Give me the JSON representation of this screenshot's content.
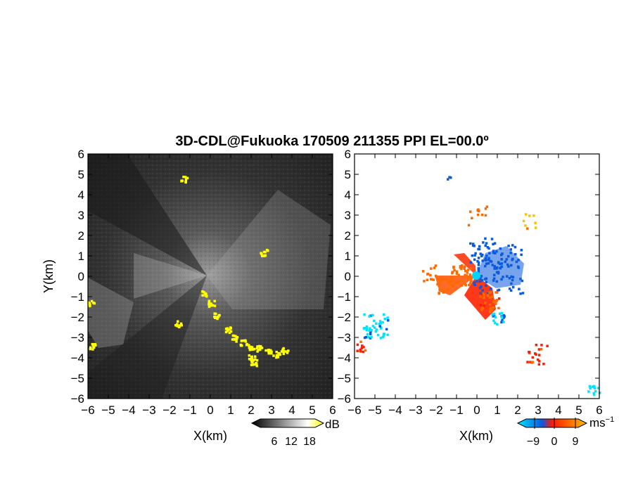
{
  "title": "3D-CDL@Fukuoka 170509 211355 PPI EL=00.0º",
  "chart_data": [
    {
      "type": "heatmap",
      "name": "",
      "xlabel": "X(km)",
      "ylabel": "Y(km)",
      "xlim": [
        -6,
        6
      ],
      "ylim": [
        -6,
        6
      ],
      "xticks": [
        "−6",
        "−5",
        "−4",
        "−3",
        "−2",
        "−1",
        "0",
        "1",
        "2",
        "3",
        "4",
        "5",
        "6"
      ],
      "yticks": [
        "6",
        "5",
        "4",
        "3",
        "2",
        "1",
        "0",
        "−1",
        "−2",
        "−3",
        "−4",
        "−5",
        "−6"
      ],
      "colorbar": {
        "unit": "dB",
        "ticks": [
          "6",
          "12",
          "18"
        ],
        "range": [
          0,
          24
        ],
        "colors": [
          "#000000",
          "#ffffff",
          "#ffff00"
        ]
      },
      "highlight_color": "#ffff00",
      "yellow_features": [
        {
          "x": -0.3,
          "y": -0.8
        },
        {
          "x": 0.0,
          "y": -1.3
        },
        {
          "x": 0.3,
          "y": -1.9
        },
        {
          "x": 0.8,
          "y": -2.6
        },
        {
          "x": 1.2,
          "y": -3.0
        },
        {
          "x": 1.6,
          "y": -3.2
        },
        {
          "x": 2.0,
          "y": -3.4
        },
        {
          "x": 2.4,
          "y": -3.5
        },
        {
          "x": 2.8,
          "y": -3.7
        },
        {
          "x": 3.2,
          "y": -3.8
        },
        {
          "x": 3.6,
          "y": -3.6
        },
        {
          "x": 2.0,
          "y": -3.9
        },
        {
          "x": 2.1,
          "y": -4.2
        },
        {
          "x": -5.9,
          "y": -1.3
        },
        {
          "x": -5.8,
          "y": -3.4
        },
        {
          "x": -1.6,
          "y": -2.3
        },
        {
          "x": 2.6,
          "y": 1.2
        },
        {
          "x": -1.3,
          "y": 4.8
        }
      ]
    },
    {
      "type": "heatmap",
      "name": "",
      "xlabel": "X(km)",
      "ylabel": "",
      "xlim": [
        -6,
        6
      ],
      "ylim": [
        -6,
        6
      ],
      "xticks": [
        "−6",
        "−5",
        "−4",
        "−3",
        "−2",
        "−1",
        "0",
        "1",
        "2",
        "3",
        "4",
        "5",
        "6"
      ],
      "yticks": [
        "6",
        "5",
        "4",
        "3",
        "2",
        "1",
        "0",
        "−1",
        "−2",
        "−3",
        "−4",
        "−5",
        "−6"
      ],
      "colorbar": {
        "unit": "ms",
        "unit_sup": "−1",
        "ticks": [
          "−9",
          "0",
          "9"
        ],
        "range": [
          -12,
          12
        ],
        "colors": [
          "#00e5ff",
          "#0a5ae0",
          "#ff1a00",
          "#ff6a00",
          "#ffc000"
        ]
      },
      "clusters": [
        {
          "x": 1.0,
          "y": 0.4,
          "value": -6,
          "spread": 1.2,
          "count": 90
        },
        {
          "x": 0.4,
          "y": 1.2,
          "value": -7,
          "spread": 0.8,
          "count": 40
        },
        {
          "x": -0.8,
          "y": 0.1,
          "value": 5,
          "spread": 0.5,
          "count": 40
        },
        {
          "x": -1.6,
          "y": -0.4,
          "value": 6,
          "spread": 0.4,
          "count": 25
        },
        {
          "x": 0.6,
          "y": -1.2,
          "value": 4,
          "spread": 0.5,
          "count": 35
        },
        {
          "x": 1.0,
          "y": -2.0,
          "value": -9,
          "spread": 0.3,
          "count": 20
        },
        {
          "x": -5.0,
          "y": -2.4,
          "value": -10,
          "spread": 0.6,
          "count": 45
        },
        {
          "x": -5.7,
          "y": -3.4,
          "value": 3,
          "spread": 0.3,
          "count": 12
        },
        {
          "x": 2.9,
          "y": -3.8,
          "value": 2,
          "spread": 0.5,
          "count": 20
        },
        {
          "x": -2.3,
          "y": 0.2,
          "value": 7,
          "spread": 0.4,
          "count": 15
        },
        {
          "x": 0.0,
          "y": 3.0,
          "value": 7,
          "spread": 0.5,
          "count": 12
        },
        {
          "x": 2.6,
          "y": 2.8,
          "value": 10,
          "spread": 0.4,
          "count": 8
        },
        {
          "x": 5.7,
          "y": -5.5,
          "value": -11,
          "spread": 0.3,
          "count": 12
        },
        {
          "x": -1.4,
          "y": 4.9,
          "value": -7,
          "spread": 0.1,
          "count": 3
        }
      ]
    }
  ]
}
